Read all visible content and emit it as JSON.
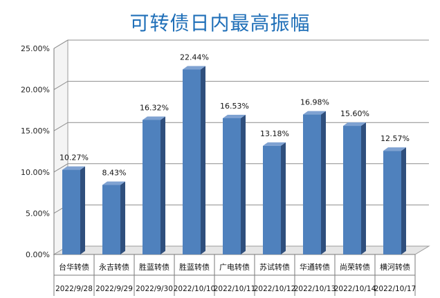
{
  "chart_data": {
    "type": "bar",
    "title": "可转债日内最高振幅",
    "categories": [
      [
        "台华转债",
        "2022/9/28"
      ],
      [
        "永吉转债",
        "2022/9/29"
      ],
      [
        "胜蓝转债",
        "2022/9/30"
      ],
      [
        "胜蓝转债",
        "2022/10/10"
      ],
      [
        "广电转债",
        "2022/10/11"
      ],
      [
        "苏试转债",
        "2022/10/12"
      ],
      [
        "华通转债",
        "2022/10/13"
      ],
      [
        "尚荣转债",
        "2022/10/14"
      ],
      [
        "横河转债",
        "2022/10/17"
      ]
    ],
    "values": [
      10.27,
      8.43,
      16.32,
      22.44,
      16.53,
      13.18,
      16.98,
      15.6,
      12.57
    ],
    "value_labels": [
      "10.27%",
      "8.43%",
      "16.32%",
      "22.44%",
      "16.53%",
      "13.18%",
      "16.98%",
      "15.60%",
      "12.57%"
    ],
    "y_ticks": [
      "0.00%",
      "5.00%",
      "10.00%",
      "15.00%",
      "20.00%",
      "25.00%"
    ],
    "ylim": [
      0,
      25
    ],
    "grid": true,
    "bar_color": "#4f81bd",
    "bar_side_color": "#2f4f7d",
    "bar_top_color": "#7fa2d2"
  }
}
